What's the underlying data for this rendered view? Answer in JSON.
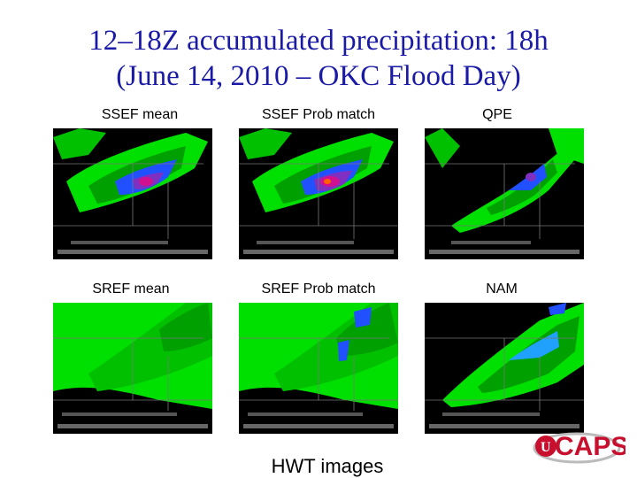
{
  "slide": {
    "title_line1": "12–18Z accumulated precipitation: 18h",
    "title_line2": "(June 14, 2010 – OKC Flood Day)",
    "caption": "HWT images"
  },
  "panels": [
    {
      "label": "SSEF mean"
    },
    {
      "label": "SSEF Prob match"
    },
    {
      "label": "QPE"
    },
    {
      "label": "SREF mean"
    },
    {
      "label": "SREF Prob match"
    },
    {
      "label": "NAM"
    }
  ],
  "logo": {
    "text": "CAPS",
    "brand_color": "#c8102e"
  },
  "colors": {
    "title": "#1a1aa6",
    "precip_light": "#00e000",
    "precip_mid": "#00a000",
    "precip_blue": "#2050ff",
    "precip_max": "#d01090"
  }
}
